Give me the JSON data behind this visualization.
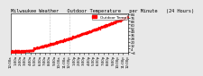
{
  "title": "Milwaukee Weather   Outdoor Temperature   per Minute   (24 Hours)",
  "bg_color": "#e8e8e8",
  "plot_bg_color": "#ffffff",
  "dot_color": "#ff0000",
  "legend_box_color": "#ff0000",
  "legend_text": "Outdoor Temp",
  "x_min": 0,
  "x_max": 1440,
  "y_min": -5,
  "y_max": 85,
  "y_ticks": [
    -4,
    4,
    12,
    20,
    28,
    36,
    44,
    52,
    60,
    68,
    76,
    84
  ],
  "vline1": 480,
  "vline2": 720,
  "dot_size": 1.0,
  "title_fontsize": 3.8,
  "tick_fontsize": 2.8,
  "legend_fontsize": 3.0
}
